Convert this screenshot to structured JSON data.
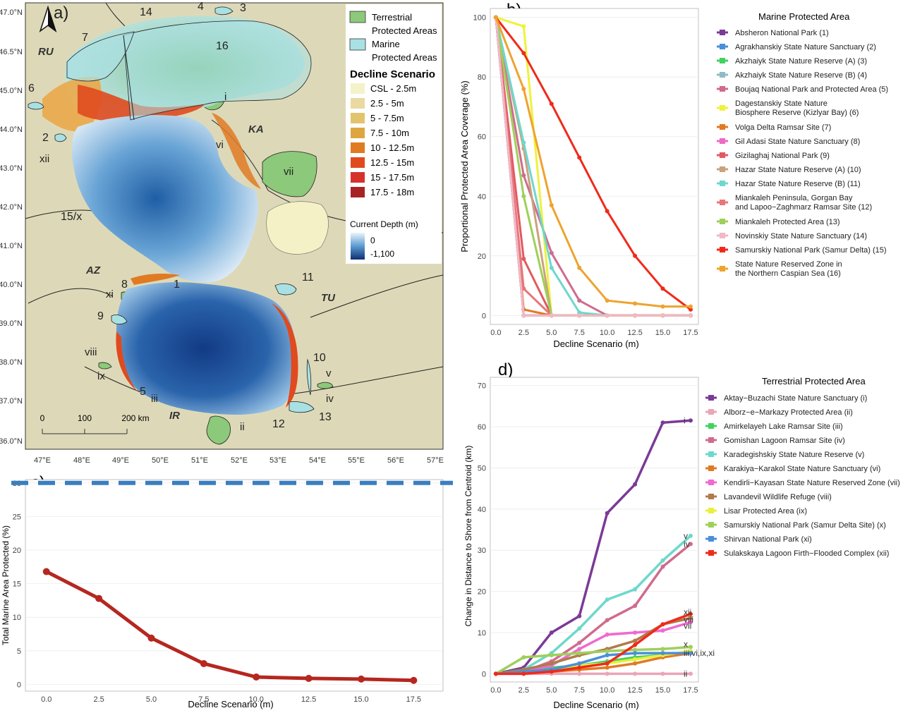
{
  "panel_a": {
    "panel_label": "a)",
    "lat_labels": [
      "47.0°N",
      "46.5°N",
      "45.0°N",
      "44.0°N",
      "43.0°N",
      "42.0°N",
      "41.0°N",
      "40.0°N",
      "39.0°N",
      "38.0°N",
      "37.0°N",
      "36.0°N"
    ],
    "lon_labels": [
      "47°E",
      "48°E",
      "49°E",
      "50°E",
      "51°E",
      "52°E",
      "53°E",
      "54°E",
      "55°E",
      "56°E",
      "57°E"
    ],
    "countries": [
      "RU",
      "KA",
      "AZ",
      "TU",
      "IR"
    ],
    "marine_ids": [
      "1",
      "2",
      "3",
      "4",
      "5",
      "6",
      "7",
      "8",
      "9",
      "10",
      "11",
      "12",
      "13",
      "14",
      "15/x",
      "16"
    ],
    "terrestrial_ids": [
      "i",
      "ii",
      "iii",
      "iv",
      "v",
      "vi",
      "vii",
      "viii",
      "ix",
      "xi",
      "xii"
    ],
    "scale_bar": {
      "ticks": [
        "0",
        "100",
        "200 km"
      ]
    },
    "legend": {
      "terrestrial_label_1": "Terrestrial",
      "terrestrial_label_2": "Protected Areas",
      "marine_label_1": "Marine",
      "marine_label_2": "Protected Areas",
      "decline_title": "Decline Scenario",
      "decline_items": [
        {
          "label": "CSL - 2.5m",
          "color": "#f4f2c8"
        },
        {
          "label": "2.5 - 5m",
          "color": "#ead9a0"
        },
        {
          "label": "5 - 7.5m",
          "color": "#e2c46c"
        },
        {
          "label": "7.5 - 10m",
          "color": "#dea640"
        },
        {
          "label": "10 - 12.5m",
          "color": "#e07a23"
        },
        {
          "label": "12.5 - 15m",
          "color": "#e04a1e"
        },
        {
          "label": "15 - 17.5m",
          "color": "#d6322c"
        },
        {
          "label": "17.5 - 18m",
          "color": "#a82424"
        }
      ],
      "depth_title": "Current Depth (m)",
      "depth_max": "0",
      "depth_min": "-1,100"
    },
    "colors": {
      "land": "#ddd9b8",
      "terrestrial": "#8cc97a",
      "marine": "#a9e0e3"
    }
  },
  "panel_b": {
    "panel_label": "b)",
    "legend_title": "Marine Protected Area",
    "chart_data": {
      "type": "line",
      "xlabel": "Decline Scenario (m)",
      "ylabel": "Proportional Protected Area Coverage (%)",
      "x": [
        0,
        2.5,
        5,
        7.5,
        10,
        12.5,
        15,
        17.5
      ],
      "xlim": [
        -0.5,
        18.2
      ],
      "ylim": [
        -3,
        103
      ],
      "xticks": [
        "0.0",
        "2.5",
        "5.0",
        "7.5",
        "10.0",
        "12.5",
        "15.0",
        "17.5"
      ],
      "yticks": [
        "0",
        "20",
        "40",
        "60",
        "80",
        "100"
      ],
      "series": [
        {
          "name": "Absheron National Park (1)",
          "color": "#7b3a96",
          "values": [
            100,
            0,
            0,
            0,
            0,
            0,
            0,
            0
          ]
        },
        {
          "name": "Agrakhanskiy State Nature Sanctuary (2)",
          "color": "#4a8fd9",
          "values": [
            100,
            0,
            0,
            0,
            0,
            0,
            0,
            0
          ]
        },
        {
          "name": "Akzhaiyk State Nature Reserve (A) (3)",
          "color": "#46d060",
          "values": [
            100,
            0,
            0,
            0,
            0,
            0,
            0,
            0
          ]
        },
        {
          "name": "Akzhaiyk State Nature Reserve (B) (4)",
          "color": "#8fbcc4",
          "values": [
            100,
            0,
            0,
            0,
            0,
            0,
            0,
            0
          ]
        },
        {
          "name": "Boujaq National Park and Protected Area (5)",
          "color": "#d06b8e",
          "values": [
            100,
            47,
            21,
            5,
            0,
            0,
            0,
            0
          ]
        },
        {
          "name": "Dagestanskiy State Nature Biosphere Reserve (Kizlyar Bay) (6)",
          "color": "#eef23c",
          "values": [
            100,
            97,
            0,
            0,
            0,
            0,
            0,
            0
          ]
        },
        {
          "name": "Volga Delta Ramsar Site (7)",
          "color": "#e07a23",
          "values": [
            100,
            2,
            0,
            0,
            0,
            0,
            0,
            0
          ]
        },
        {
          "name": "Gil Adasi State Nature Sanctuary (8)",
          "color": "#ef6ac4",
          "values": [
            100,
            0,
            0,
            0,
            0,
            0,
            0,
            0
          ]
        },
        {
          "name": "Gizilaghaj National Park (9)",
          "color": "#e05a60",
          "values": [
            100,
            19,
            0,
            0,
            0,
            0,
            0,
            0
          ]
        },
        {
          "name": "Hazar State Nature Reserve (A) (10)",
          "color": "#c9a27c",
          "values": [
            100,
            56,
            0,
            0,
            0,
            0,
            0,
            0
          ]
        },
        {
          "name": "Hazar State Nature Reserve (B) (11)",
          "color": "#6ed8cc",
          "values": [
            100,
            58,
            16,
            1,
            0,
            0,
            0,
            0
          ]
        },
        {
          "name": "Miankaleh Peninsula, Gorgan Bay and Lapoo-Zaghmarz Ramsar Site (12)",
          "color": "#e8757a",
          "values": [
            100,
            9,
            0,
            0,
            0,
            0,
            0,
            0
          ]
        },
        {
          "name": "Miankaleh Protected Area (13)",
          "color": "#9ed05a",
          "values": [
            100,
            40,
            0,
            0,
            0,
            0,
            0,
            0
          ]
        },
        {
          "name": "Novinskiy State Nature Sanctuary (14)",
          "color": "#f2b8c4",
          "values": [
            100,
            0,
            0,
            0,
            0,
            0,
            0,
            0
          ]
        },
        {
          "name": "Samurskiy National Park (Samur Delta) (15)",
          "color": "#f02a1a",
          "values": [
            100,
            88,
            71,
            53,
            35,
            20,
            9,
            2
          ]
        },
        {
          "name": "State Nature Reserved Zone in the Northern Caspian Sea (16)",
          "color": "#eea32e",
          "values": [
            100,
            76,
            37,
            16,
            5,
            4,
            3,
            3
          ]
        }
      ]
    },
    "legend": [
      {
        "lines": [
          "Absheron National Park (1)"
        ],
        "color": "#7b3a96"
      },
      {
        "lines": [
          "Agrakhanskiy State Nature Sanctuary (2)"
        ],
        "color": "#4a8fd9"
      },
      {
        "lines": [
          "Akzhaiyk State Nature Reserve (A) (3)"
        ],
        "color": "#46d060"
      },
      {
        "lines": [
          "Akzhaiyk State Nature Reserve (B) (4)"
        ],
        "color": "#8fbcc4"
      },
      {
        "lines": [
          "Boujaq National Park and Protected Area (5)"
        ],
        "color": "#d06b8e"
      },
      {
        "lines": [
          "Dagestanskiy State Nature",
          "Biosphere Reserve (Kizlyar Bay) (6)"
        ],
        "color": "#eef23c"
      },
      {
        "lines": [
          "Volga Delta Ramsar Site (7)"
        ],
        "color": "#e07a23"
      },
      {
        "lines": [
          "Gil Adasi State Nature Sanctuary (8)"
        ],
        "color": "#ef6ac4"
      },
      {
        "lines": [
          "Gizilaghaj National Park (9)"
        ],
        "color": "#e05a60"
      },
      {
        "lines": [
          "Hazar State Nature Reserve (A) (10)"
        ],
        "color": "#c9a27c"
      },
      {
        "lines": [
          "Hazar State Nature Reserve (B) (11)"
        ],
        "color": "#6ed8cc"
      },
      {
        "lines": [
          "Miankaleh Peninsula, Gorgan Bay",
          "and Lapoo−Zaghmarz Ramsar Site (12)"
        ],
        "color": "#e8757a"
      },
      {
        "lines": [
          "Miankaleh Protected Area (13)"
        ],
        "color": "#9ed05a"
      },
      {
        "lines": [
          "Novinskiy State Nature Sanctuary (14)"
        ],
        "color": "#f2b8c4"
      },
      {
        "lines": [
          "Samurskiy National Park (Samur Delta) (15)"
        ],
        "color": "#f02a1a"
      },
      {
        "lines": [
          "State Nature Reserved Zone in",
          " the Northern Caspian Sea (16)"
        ],
        "color": "#eea32e"
      }
    ]
  },
  "panel_c": {
    "panel_label": "c)",
    "chart_data": {
      "type": "line",
      "xlabel": "Decline Scenario (m)",
      "ylabel": "Total Marine Area Protected (%)",
      "x": [
        0,
        2.5,
        5,
        7.5,
        10,
        12.5,
        15,
        17.5
      ],
      "xlim": [
        -1.0,
        18.9
      ],
      "ylim": [
        -1.0,
        30.5
      ],
      "xticks": [
        "0.0",
        "2.5",
        "5.0",
        "7.5",
        "10.0",
        "12.5",
        "15.0",
        "17.5"
      ],
      "yticks": [
        "0",
        "5",
        "10",
        "15",
        "20",
        "25",
        "30"
      ],
      "series": [
        {
          "color": "#b5271f",
          "values": [
            16.8,
            12.8,
            6.9,
            3.1,
            1.1,
            0.9,
            0.8,
            0.6
          ]
        }
      ],
      "reference_line": {
        "y": 30,
        "style": "dashed",
        "color": "#3a7ebf"
      }
    }
  },
  "panel_d": {
    "panel_label": "d)",
    "legend_title": "Terrestrial Protected Area",
    "chart_data": {
      "type": "line",
      "xlabel": "Decline Scenario (m)",
      "ylabel": "Change in Distance to Shore from Centroid (km)",
      "x": [
        0,
        2.5,
        5,
        7.5,
        10,
        12.5,
        15,
        17.5
      ],
      "xlim": [
        -0.5,
        18.2
      ],
      "ylim": [
        -2,
        72
      ],
      "xticks": [
        "0.0",
        "2.5",
        "5.0",
        "7.5",
        "10.0",
        "12.5",
        "15.0",
        "17.5"
      ],
      "yticks": [
        "0",
        "10",
        "20",
        "30",
        "40",
        "50",
        "60",
        "70"
      ],
      "series": [
        {
          "name": "Aktay−Buzachi State Nature Sanctuary (i)",
          "color": "#7b3a96",
          "values": [
            0,
            1.5,
            10,
            14,
            39,
            46,
            61,
            61.5
          ]
        },
        {
          "name": "Alborz−e−Markazy Protected Area (ii)",
          "color": "#eaa5b8",
          "values": [
            0,
            0,
            0,
            0,
            0,
            0,
            0,
            0
          ]
        },
        {
          "name": "Amirkelayeh Lake Ramsar Site (iii)",
          "color": "#46d060",
          "values": [
            0,
            0.5,
            1.5,
            2,
            3,
            4,
            4.5,
            5
          ]
        },
        {
          "name": "Gomishan Lagoon Ramsar Site (iv)",
          "color": "#d06b8e",
          "values": [
            0,
            0.5,
            3,
            7.5,
            13,
            16.5,
            26,
            31.5
          ]
        },
        {
          "name": "Karadegishskiy State Nature Reserve (v)",
          "color": "#6ed8cc",
          "values": [
            0,
            1,
            5,
            11,
            18,
            20.5,
            27.5,
            33.5
          ]
        },
        {
          "name": "Karakiya−Karakol State Nature Sanctuary (vi)",
          "color": "#e07a23",
          "values": [
            0,
            0.2,
            0.5,
            1,
            1.5,
            2.5,
            4,
            5
          ]
        },
        {
          "name": "Kendirli−Kayasan State Nature Reserved Zone (vii)",
          "color": "#f06ad0",
          "values": [
            0,
            0.5,
            2,
            6,
            9.5,
            10,
            10.5,
            12.5
          ]
        },
        {
          "name": "Lavandevil Wildlife Refuge (viii)",
          "color": "#b07a4a",
          "values": [
            0,
            1,
            2.5,
            4.5,
            6,
            8,
            12,
            13.5
          ]
        },
        {
          "name": "Lisar Protected Area (ix)",
          "color": "#e8f03a",
          "values": [
            0,
            0.3,
            1,
            2,
            2.5,
            3.5,
            4.5,
            5.5
          ]
        },
        {
          "name": "Samurskiy National Park (Samur Delta Site) (x)",
          "color": "#9ed05a",
          "values": [
            0,
            4,
            4.5,
            5,
            5.5,
            5.8,
            6,
            6.5
          ]
        },
        {
          "name": "Shirvan National Park (xi)",
          "color": "#4a8fd9",
          "values": [
            0,
            0.5,
            1,
            2.5,
            4.5,
            5,
            5,
            5
          ]
        },
        {
          "name": "Sulakskaya Lagoon Firth−Flooded Complex (xii)",
          "color": "#f02a1a",
          "values": [
            0,
            0,
            0.5,
            1.5,
            2.5,
            7,
            12,
            14.5
          ]
        }
      ],
      "end_labels": [
        {
          "text": "i",
          "value": 61.5
        },
        {
          "text": "v",
          "value": 33.5
        },
        {
          "text": "iv",
          "value": 31.5
        },
        {
          "text": "xii",
          "value": 15
        },
        {
          "text": "viii",
          "value": 13.2
        },
        {
          "text": "vii",
          "value": 11.6
        },
        {
          "text": "x",
          "value": 7.2
        },
        {
          "text": "iii,vi,ix,xi",
          "value": 5
        },
        {
          "text": "ii",
          "value": 0
        }
      ]
    },
    "legend": [
      {
        "lines": [
          "Aktay−Buzachi State Nature Sanctuary (i)"
        ],
        "color": "#7b3a96"
      },
      {
        "lines": [
          "Alborz−e−Markazy Protected Area (ii)"
        ],
        "color": "#eaa5b8"
      },
      {
        "lines": [
          "Amirkelayeh Lake Ramsar Site (iii)"
        ],
        "color": "#46d060"
      },
      {
        "lines": [
          "Gomishan Lagoon Ramsar Site (iv)"
        ],
        "color": "#d06b8e"
      },
      {
        "lines": [
          "Karadegishskiy State Nature Reserve (v)"
        ],
        "color": "#6ed8cc"
      },
      {
        "lines": [
          "Karakiya−Karakol State Nature Sanctuary (vi)"
        ],
        "color": "#e07a23"
      },
      {
        "lines": [
          "Kendirli−Kayasan State Nature Reserved Zone (vii)"
        ],
        "color": "#f06ad0"
      },
      {
        "lines": [
          "Lavandevil Wildlife Refuge (viii)"
        ],
        "color": "#b07a4a"
      },
      {
        "lines": [
          "Lisar Protected Area (ix)"
        ],
        "color": "#e8f03a"
      },
      {
        "lines": [
          "Samurskiy National Park (Samur Delta Site) (x)"
        ],
        "color": "#9ed05a"
      },
      {
        "lines": [
          "Shirvan National Park (xi)"
        ],
        "color": "#4a8fd9"
      },
      {
        "lines": [
          "Sulakskaya Lagoon Firth−Flooded Complex (xii)"
        ],
        "color": "#f02a1a"
      }
    ]
  }
}
